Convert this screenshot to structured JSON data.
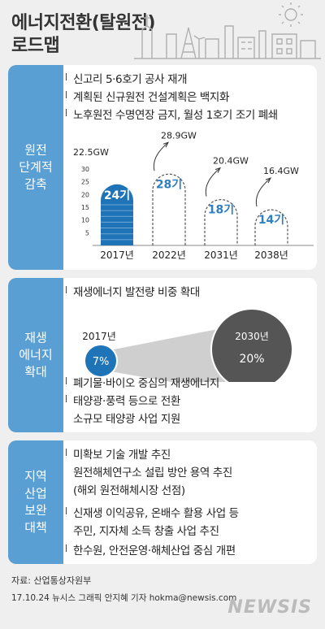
{
  "header": {
    "title_line1": "에너지전환(탈원전)",
    "title_line2": "로드맵"
  },
  "sections": [
    {
      "label": [
        "원전",
        "단계적",
        "감축"
      ],
      "bullets": [
        "신고리 5·6호기 공사 재개",
        "계획된 신규원전 건설계획은 백지화",
        "노후원전 수명연장 금지, 월성 1호기 조기 폐쇄"
      ]
    },
    {
      "label": [
        "재생",
        "에너지",
        "확대"
      ],
      "bullets": [
        "재생에너지 발전량 비중 확대",
        "폐기물·바이오 중심의 재생에너지",
        "태양광·풍력 등으로  전환",
        "소규모 태양광 사업 지원"
      ]
    },
    {
      "label": [
        "지역",
        "산업",
        "보완",
        "대책"
      ],
      "bullets": [
        "미확보 기술 개발 추진",
        "원전해체연구소 설립 방안 용역 추진",
        "(해외 원전해체시장 선점)",
        "신재생 이익공유, 온배수 활용 사업 등",
        "주민, 지자체 소득 창출 사업 추진",
        "한수원, 안전운영·해체산업 중심 개편"
      ]
    }
  ],
  "chart_data": [
    {
      "type": "bar",
      "categories": [
        "2017년",
        "2022년",
        "2031년",
        "2038년"
      ],
      "values": [
        24,
        28,
        18,
        14
      ],
      "value_labels": [
        "24기",
        "28기",
        "18기",
        "14기"
      ],
      "capacity_labels": [
        "22.5GW",
        "28.9GW",
        "20.4GW",
        "16.4GW"
      ],
      "yticks": [
        5,
        10,
        15,
        20,
        25,
        30
      ],
      "ylim": [
        0,
        30
      ],
      "colors": {
        "filled": "#1f74b8",
        "outline": "#555555",
        "label": "#2f7fc1"
      }
    },
    {
      "type": "bubble",
      "items": [
        {
          "year": "2017년",
          "value": "7%"
        },
        {
          "year": "2030년",
          "value": "20%"
        }
      ],
      "colors": {
        "small": "#1f74b8",
        "large": "#555555"
      }
    }
  ],
  "footer": {
    "source": "자료: 산업통상자원부",
    "credit": "17.10.24 뉴시스 그래픽 안지혜 기자 hokma@newsis.com",
    "logo": "NEWSIS"
  }
}
